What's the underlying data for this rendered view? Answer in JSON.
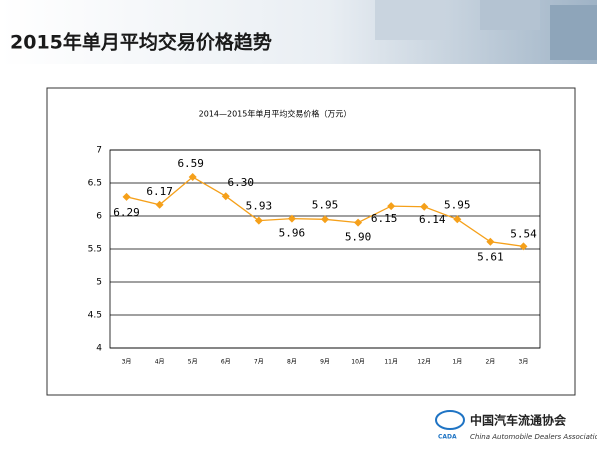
{
  "header": {
    "title": "2015年单月平均交易价格趋势"
  },
  "chart_data": {
    "type": "line",
    "title": "2014—2015年单月平均交易价格（万元）",
    "categories": [
      "3月",
      "4月",
      "5月",
      "6月",
      "7月",
      "8月",
      "9月",
      "10月",
      "11月",
      "12月",
      "1月",
      "2月",
      "3月"
    ],
    "values": [
      6.29,
      6.17,
      6.59,
      6.3,
      5.93,
      5.96,
      5.95,
      5.9,
      6.15,
      6.14,
      5.95,
      5.61,
      5.54
    ],
    "value_labels": [
      "6.29",
      "6.17",
      "6.59",
      "6.30",
      "5.93",
      "5.96",
      "5.95",
      "5.90",
      "6.15",
      "6.14",
      "5.95",
      "5.61",
      "5.54"
    ],
    "color": "#f5a01a",
    "ylim": [
      4,
      7
    ],
    "yticks": [
      4,
      4.5,
      5,
      5.5,
      6,
      6.5,
      7
    ],
    "grid": true
  },
  "footer": {
    "logo_mark": "CADA",
    "logo_name": "中国汽车流通协会",
    "logo_subtitle": "China Automobile Dealers Association"
  }
}
